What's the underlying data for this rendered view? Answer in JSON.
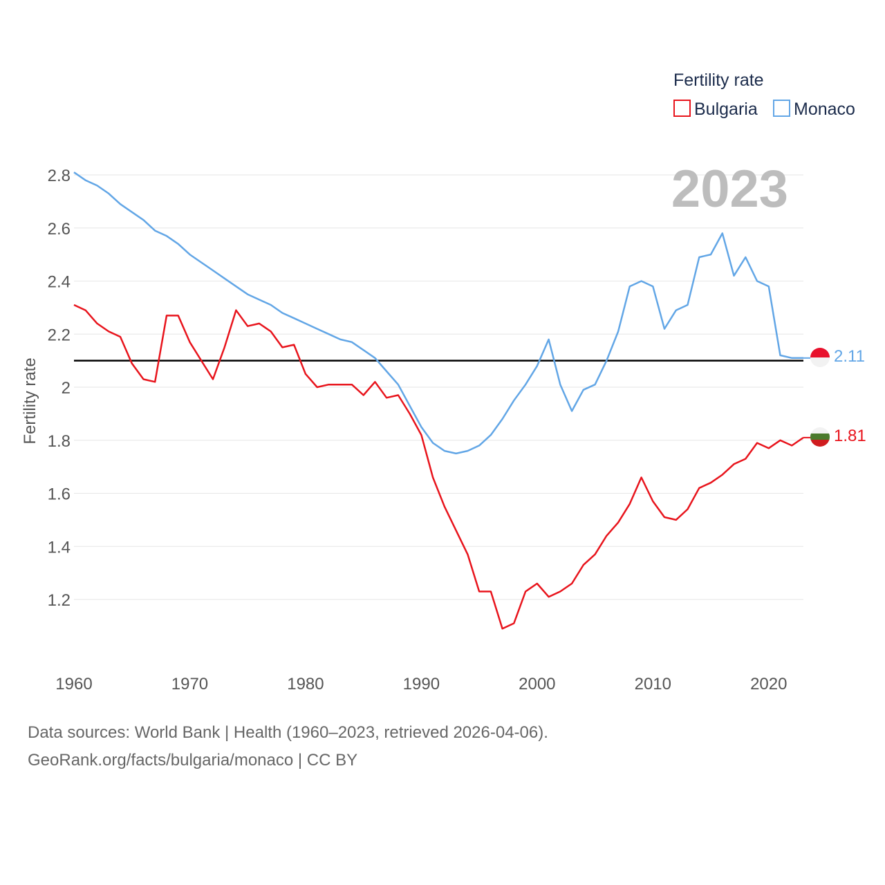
{
  "colors": {
    "bulgaria": "#e8141c",
    "monaco": "#62a6e6",
    "reference": "#000000",
    "grid": "#e6e6e6",
    "year": "#bdbdbd",
    "text": "#555555",
    "legend_text": "#1b2b4b",
    "bg_flag_green": "#4a7a2c"
  },
  "legend": {
    "title": "Fertility rate",
    "items": [
      {
        "label": "Bulgaria",
        "color": "#e8141c"
      },
      {
        "label": "Monaco",
        "color": "#62a6e6"
      }
    ]
  },
  "year_label": "2023",
  "end_labels": {
    "monaco": "2.11",
    "bulgaria": "1.81"
  },
  "flag_icons": {
    "monaco": "monaco-flag-icon",
    "bulgaria": "bulgaria-flag-icon"
  },
  "footer": {
    "line1": "Data sources: World Bank | Health (1960–2023, retrieved 2026-04-06).",
    "line2": "GeoRank.org/facts/bulgaria/monaco | CC BY"
  },
  "chart_data": {
    "type": "line",
    "title": "",
    "xlabel": "",
    "ylabel": "Fertility rate",
    "xlim": [
      1960,
      2023
    ],
    "ylim": [
      1.0,
      2.85
    ],
    "x_ticks": [
      "1960",
      "1970",
      "1980",
      "1990",
      "2000",
      "2010",
      "2020"
    ],
    "y_ticks": [
      "1.2",
      "1.4",
      "1.6",
      "1.8",
      "2",
      "2.2",
      "2.4",
      "2.6",
      "2.8"
    ],
    "reference_line": {
      "y": 2.1
    },
    "x": [
      1960,
      1961,
      1962,
      1963,
      1964,
      1965,
      1966,
      1967,
      1968,
      1969,
      1970,
      1971,
      1972,
      1973,
      1974,
      1975,
      1976,
      1977,
      1978,
      1979,
      1980,
      1981,
      1982,
      1983,
      1984,
      1985,
      1986,
      1987,
      1988,
      1989,
      1990,
      1991,
      1992,
      1993,
      1994,
      1995,
      1996,
      1997,
      1998,
      1999,
      2000,
      2001,
      2002,
      2003,
      2004,
      2005,
      2006,
      2007,
      2008,
      2009,
      2010,
      2011,
      2012,
      2013,
      2014,
      2015,
      2016,
      2017,
      2018,
      2019,
      2020,
      2021,
      2022,
      2023
    ],
    "series": [
      {
        "name": "Bulgaria",
        "values": [
          2.31,
          2.29,
          2.24,
          2.21,
          2.19,
          2.09,
          2.03,
          2.02,
          2.27,
          2.27,
          2.17,
          2.1,
          2.03,
          2.15,
          2.29,
          2.23,
          2.24,
          2.21,
          2.15,
          2.16,
          2.05,
          2.0,
          2.01,
          2.01,
          2.01,
          1.97,
          2.02,
          1.96,
          1.97,
          1.9,
          1.82,
          1.66,
          1.55,
          1.46,
          1.37,
          1.23,
          1.23,
          1.09,
          1.11,
          1.23,
          1.26,
          1.21,
          1.23,
          1.26,
          1.33,
          1.37,
          1.44,
          1.49,
          1.56,
          1.66,
          1.57,
          1.51,
          1.5,
          1.54,
          1.62,
          1.64,
          1.67,
          1.71,
          1.73,
          1.79,
          1.77,
          1.8,
          1.78,
          1.81
        ]
      },
      {
        "name": "Monaco",
        "values": [
          2.81,
          2.78,
          2.76,
          2.73,
          2.69,
          2.66,
          2.63,
          2.59,
          2.57,
          2.54,
          2.5,
          2.47,
          2.44,
          2.41,
          2.38,
          2.35,
          2.33,
          2.31,
          2.28,
          2.26,
          2.24,
          2.22,
          2.2,
          2.18,
          2.17,
          2.14,
          2.11,
          2.06,
          2.01,
          1.93,
          1.85,
          1.79,
          1.76,
          1.75,
          1.76,
          1.78,
          1.82,
          1.88,
          1.95,
          2.01,
          2.08,
          2.18,
          2.01,
          1.91,
          1.99,
          2.01,
          2.1,
          2.21,
          2.38,
          2.4,
          2.38,
          2.22,
          2.29,
          2.31,
          2.49,
          2.5,
          2.58,
          2.42,
          2.49,
          2.4,
          2.38,
          2.12,
          2.11,
          2.11
        ]
      }
    ]
  }
}
